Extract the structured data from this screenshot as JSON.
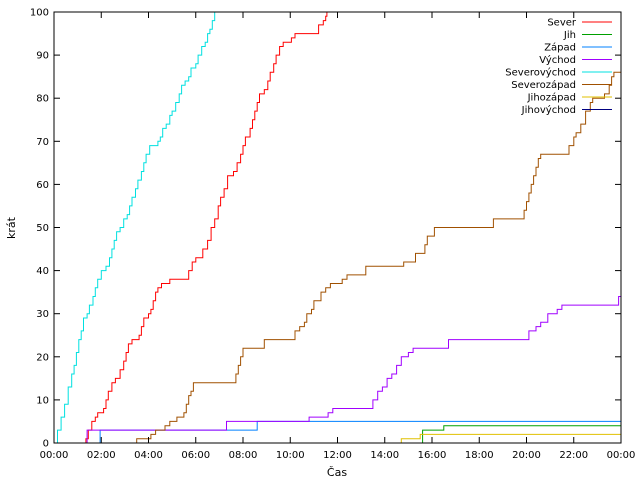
{
  "chart_data": {
    "type": "line",
    "xlabel": "Čas",
    "ylabel": "krát",
    "xlim": [
      0,
      24
    ],
    "ylim": [
      0,
      100
    ],
    "x_ticks": [
      {
        "v": 0,
        "label": "00:00"
      },
      {
        "v": 2,
        "label": "02:00"
      },
      {
        "v": 4,
        "label": "04:00"
      },
      {
        "v": 6,
        "label": "06:00"
      },
      {
        "v": 8,
        "label": "08:00"
      },
      {
        "v": 10,
        "label": "10:00"
      },
      {
        "v": 12,
        "label": "12:00"
      },
      {
        "v": 14,
        "label": "14:00"
      },
      {
        "v": 16,
        "label": "16:00"
      },
      {
        "v": 18,
        "label": "18:00"
      },
      {
        "v": 20,
        "label": "20:00"
      },
      {
        "v": 22,
        "label": "22:00"
      },
      {
        "v": 24,
        "label": "00:00"
      }
    ],
    "y_ticks": [
      {
        "v": 0,
        "label": "0"
      },
      {
        "v": 10,
        "label": "10"
      },
      {
        "v": 20,
        "label": "20"
      },
      {
        "v": 30,
        "label": "30"
      },
      {
        "v": 40,
        "label": "40"
      },
      {
        "v": 50,
        "label": "50"
      },
      {
        "v": 60,
        "label": "60"
      },
      {
        "v": 70,
        "label": "70"
      },
      {
        "v": 80,
        "label": "80"
      },
      {
        "v": 90,
        "label": "90"
      },
      {
        "v": 100,
        "label": "100"
      }
    ],
    "grid": false,
    "legend_position": "top-right",
    "series": [
      {
        "name": "Sever",
        "color": "#ff0000",
        "points": [
          [
            1.25,
            0
          ],
          [
            1.35,
            1
          ],
          [
            1.45,
            3
          ],
          [
            1.6,
            5
          ],
          [
            1.75,
            6
          ],
          [
            1.85,
            7
          ],
          [
            2.1,
            8
          ],
          [
            2.2,
            10
          ],
          [
            2.3,
            12
          ],
          [
            2.45,
            14
          ],
          [
            2.6,
            15
          ],
          [
            2.8,
            17
          ],
          [
            2.95,
            19
          ],
          [
            3.05,
            21
          ],
          [
            3.15,
            23
          ],
          [
            3.3,
            24
          ],
          [
            3.6,
            25
          ],
          [
            3.7,
            27
          ],
          [
            3.8,
            29
          ],
          [
            4.0,
            30
          ],
          [
            4.1,
            31
          ],
          [
            4.2,
            33
          ],
          [
            4.3,
            35
          ],
          [
            4.4,
            36
          ],
          [
            4.55,
            37
          ],
          [
            4.9,
            38
          ],
          [
            5.7,
            40
          ],
          [
            5.85,
            42
          ],
          [
            6.0,
            43
          ],
          [
            6.3,
            45
          ],
          [
            6.5,
            47
          ],
          [
            6.65,
            50
          ],
          [
            6.8,
            52
          ],
          [
            6.95,
            55
          ],
          [
            7.05,
            57
          ],
          [
            7.2,
            59
          ],
          [
            7.35,
            62
          ],
          [
            7.6,
            63
          ],
          [
            7.75,
            65
          ],
          [
            7.9,
            67
          ],
          [
            8.0,
            69
          ],
          [
            8.1,
            71
          ],
          [
            8.3,
            73
          ],
          [
            8.4,
            75
          ],
          [
            8.5,
            77
          ],
          [
            8.6,
            79
          ],
          [
            8.7,
            81
          ],
          [
            8.9,
            82
          ],
          [
            9.05,
            84
          ],
          [
            9.15,
            86
          ],
          [
            9.3,
            88
          ],
          [
            9.4,
            90
          ],
          [
            9.55,
            92
          ],
          [
            9.7,
            93
          ],
          [
            10.05,
            94
          ],
          [
            10.2,
            95
          ],
          [
            11.2,
            97
          ],
          [
            11.4,
            98
          ],
          [
            11.5,
            99
          ],
          [
            11.55,
            100
          ]
        ]
      },
      {
        "name": "Jih",
        "color": "#00a000",
        "points": [
          [
            15.6,
            0
          ],
          [
            15.6,
            3
          ],
          [
            16.5,
            4
          ],
          [
            24,
            4
          ]
        ]
      },
      {
        "name": "Západ",
        "color": "#0080ff",
        "points": [
          [
            1.95,
            0
          ],
          [
            1.95,
            3
          ],
          [
            8.6,
            3
          ],
          [
            8.6,
            5
          ],
          [
            24,
            5
          ]
        ]
      },
      {
        "name": "Východ",
        "color": "#a000ff",
        "points": [
          [
            1.3,
            0
          ],
          [
            1.4,
            3
          ],
          [
            7.3,
            3
          ],
          [
            7.3,
            5
          ],
          [
            10.8,
            5
          ],
          [
            10.8,
            6
          ],
          [
            11.6,
            7
          ],
          [
            11.8,
            8
          ],
          [
            13.3,
            8
          ],
          [
            13.5,
            10
          ],
          [
            13.7,
            12
          ],
          [
            13.9,
            13
          ],
          [
            14.1,
            15
          ],
          [
            14.3,
            16
          ],
          [
            14.5,
            18
          ],
          [
            14.7,
            20
          ],
          [
            15.0,
            21
          ],
          [
            15.2,
            22
          ],
          [
            16.5,
            22
          ],
          [
            16.7,
            24
          ],
          [
            20.0,
            24
          ],
          [
            20.1,
            26
          ],
          [
            20.4,
            27
          ],
          [
            20.6,
            28
          ],
          [
            20.9,
            30
          ],
          [
            21.3,
            31
          ],
          [
            21.5,
            32
          ],
          [
            23.8,
            32
          ],
          [
            23.9,
            34
          ],
          [
            24,
            34
          ]
        ]
      },
      {
        "name": "Severovýchod",
        "color": "#00e0e0",
        "points": [
          [
            0.0,
            0
          ],
          [
            0.15,
            3
          ],
          [
            0.3,
            6
          ],
          [
            0.45,
            9
          ],
          [
            0.6,
            13
          ],
          [
            0.75,
            16
          ],
          [
            0.85,
            18
          ],
          [
            0.95,
            21
          ],
          [
            1.05,
            24
          ],
          [
            1.15,
            26
          ],
          [
            1.25,
            29
          ],
          [
            1.4,
            30
          ],
          [
            1.5,
            32
          ],
          [
            1.65,
            34
          ],
          [
            1.75,
            36
          ],
          [
            1.85,
            38
          ],
          [
            2.0,
            40
          ],
          [
            2.2,
            41
          ],
          [
            2.35,
            43
          ],
          [
            2.45,
            45
          ],
          [
            2.55,
            47
          ],
          [
            2.65,
            49
          ],
          [
            2.8,
            50
          ],
          [
            2.95,
            52
          ],
          [
            3.1,
            53
          ],
          [
            3.2,
            55
          ],
          [
            3.3,
            57
          ],
          [
            3.45,
            59
          ],
          [
            3.55,
            61
          ],
          [
            3.7,
            63
          ],
          [
            3.8,
            65
          ],
          [
            3.9,
            67
          ],
          [
            4.05,
            69
          ],
          [
            4.4,
            70
          ],
          [
            4.5,
            71
          ],
          [
            4.6,
            73
          ],
          [
            4.75,
            74
          ],
          [
            4.9,
            76
          ],
          [
            5.0,
            77
          ],
          [
            5.15,
            79
          ],
          [
            5.3,
            81
          ],
          [
            5.4,
            83
          ],
          [
            5.55,
            84
          ],
          [
            5.7,
            85
          ],
          [
            5.8,
            87
          ],
          [
            6.0,
            88
          ],
          [
            6.1,
            90
          ],
          [
            6.25,
            92
          ],
          [
            6.4,
            93
          ],
          [
            6.5,
            95
          ],
          [
            6.6,
            96
          ],
          [
            6.7,
            98
          ],
          [
            6.8,
            100
          ]
        ]
      },
      {
        "name": "Severozápad",
        "color": "#a05000",
        "points": [
          [
            3.5,
            0
          ],
          [
            3.5,
            1
          ],
          [
            4.1,
            1
          ],
          [
            4.1,
            2
          ],
          [
            4.3,
            3
          ],
          [
            4.7,
            4
          ],
          [
            4.9,
            5
          ],
          [
            5.2,
            6
          ],
          [
            5.5,
            7
          ],
          [
            5.6,
            9
          ],
          [
            5.7,
            11
          ],
          [
            5.8,
            12
          ],
          [
            5.9,
            14
          ],
          [
            7.6,
            14
          ],
          [
            7.7,
            16
          ],
          [
            7.8,
            18
          ],
          [
            7.9,
            20
          ],
          [
            8.0,
            22
          ],
          [
            8.8,
            22
          ],
          [
            8.9,
            24
          ],
          [
            10.1,
            24
          ],
          [
            10.2,
            26
          ],
          [
            10.4,
            27
          ],
          [
            10.6,
            28
          ],
          [
            10.7,
            30
          ],
          [
            10.9,
            31
          ],
          [
            11.0,
            33
          ],
          [
            11.3,
            35
          ],
          [
            11.5,
            36
          ],
          [
            11.7,
            37
          ],
          [
            12.2,
            38
          ],
          [
            12.4,
            39
          ],
          [
            13.0,
            39
          ],
          [
            13.2,
            41
          ],
          [
            14.6,
            41
          ],
          [
            14.8,
            42
          ],
          [
            15.2,
            42
          ],
          [
            15.3,
            44
          ],
          [
            15.6,
            44
          ],
          [
            15.7,
            46
          ],
          [
            15.8,
            48
          ],
          [
            16.1,
            50
          ],
          [
            18.4,
            50
          ],
          [
            18.6,
            52
          ],
          [
            19.8,
            52
          ],
          [
            19.9,
            54
          ],
          [
            20.0,
            56
          ],
          [
            20.1,
            58
          ],
          [
            20.2,
            60
          ],
          [
            20.3,
            62
          ],
          [
            20.4,
            64
          ],
          [
            20.5,
            66
          ],
          [
            20.6,
            67
          ],
          [
            21.6,
            67
          ],
          [
            21.8,
            69
          ],
          [
            22.0,
            71
          ],
          [
            22.1,
            72
          ],
          [
            22.3,
            74
          ],
          [
            22.5,
            77
          ],
          [
            22.7,
            79
          ],
          [
            22.8,
            80
          ],
          [
            23.3,
            81
          ],
          [
            23.5,
            83
          ],
          [
            23.6,
            85
          ],
          [
            23.7,
            86
          ],
          [
            24,
            86
          ]
        ]
      },
      {
        "name": "Jihozápad",
        "color": "#e0c000",
        "points": [
          [
            14.7,
            0
          ],
          [
            14.7,
            1
          ],
          [
            15.5,
            1
          ],
          [
            15.5,
            2
          ],
          [
            24,
            2
          ]
        ]
      },
      {
        "name": "Jihovýchod",
        "color": "#000080",
        "points": []
      }
    ]
  }
}
